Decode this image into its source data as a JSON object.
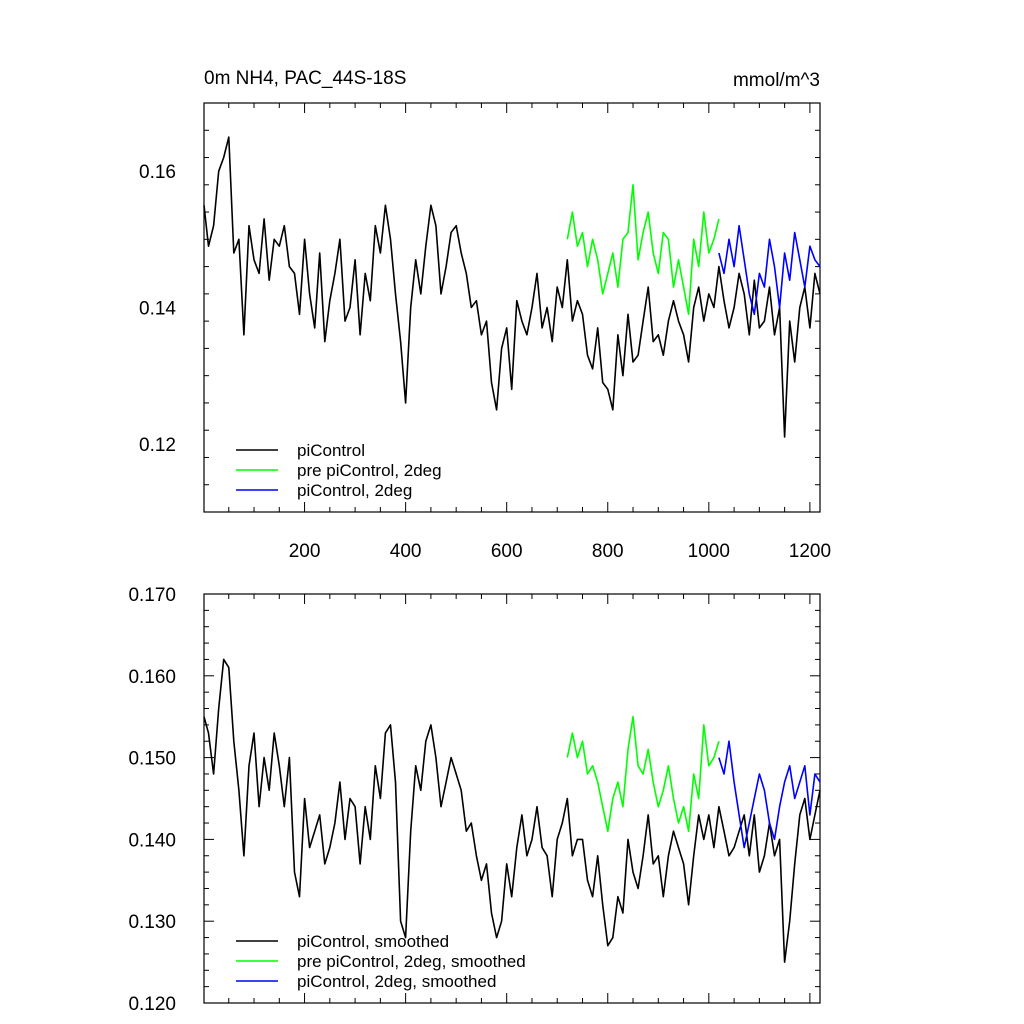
{
  "chart_data": [
    {
      "type": "line",
      "title": "0m NH4, PAC_44S-18S",
      "units": "mmol/m^3",
      "xlim": [
        1,
        1220
      ],
      "ylim": [
        0.11,
        0.17
      ],
      "xticks": [
        200,
        400,
        600,
        800,
        1000,
        1200
      ],
      "xtick_labels": [
        "200",
        "400",
        "600",
        "800",
        "1000",
        "1200"
      ],
      "yticks": [
        0.12,
        0.14,
        0.16
      ],
      "ytick_labels": [
        "0.12",
        "0.14",
        "0.16"
      ],
      "legend_position": "bottom-left",
      "series": [
        {
          "name": "piControl",
          "color": "#000000",
          "x": [
            1,
            10,
            20,
            30,
            40,
            50,
            60,
            70,
            80,
            90,
            100,
            110,
            120,
            130,
            140,
            150,
            160,
            170,
            180,
            190,
            200,
            210,
            220,
            230,
            240,
            250,
            260,
            270,
            280,
            290,
            300,
            310,
            320,
            330,
            340,
            350,
            360,
            370,
            380,
            390,
            400,
            410,
            420,
            430,
            440,
            450,
            460,
            470,
            480,
            490,
            500,
            510,
            520,
            530,
            540,
            550,
            560,
            570,
            580,
            590,
            600,
            610,
            620,
            630,
            640,
            650,
            660,
            670,
            680,
            690,
            700,
            710,
            720,
            730,
            740,
            750,
            760,
            770,
            780,
            790,
            800,
            810,
            820,
            830,
            840,
            850,
            860,
            870,
            880,
            890,
            900,
            910,
            920,
            930,
            940,
            950,
            960,
            970,
            980,
            990,
            1000,
            1010,
            1020,
            1030,
            1040,
            1050,
            1060,
            1070,
            1080,
            1090,
            1100,
            1110,
            1120,
            1130,
            1140,
            1150,
            1160,
            1170,
            1180,
            1190,
            1200,
            1210,
            1220
          ],
          "values": [
            0.155,
            0.149,
            0.152,
            0.16,
            0.162,
            0.165,
            0.148,
            0.15,
            0.136,
            0.152,
            0.147,
            0.145,
            0.153,
            0.144,
            0.15,
            0.149,
            0.152,
            0.146,
            0.145,
            0.139,
            0.15,
            0.142,
            0.137,
            0.148,
            0.135,
            0.141,
            0.145,
            0.15,
            0.138,
            0.14,
            0.147,
            0.136,
            0.145,
            0.141,
            0.152,
            0.148,
            0.155,
            0.15,
            0.142,
            0.135,
            0.126,
            0.14,
            0.147,
            0.142,
            0.149,
            0.155,
            0.152,
            0.142,
            0.146,
            0.151,
            0.152,
            0.148,
            0.145,
            0.14,
            0.141,
            0.136,
            0.138,
            0.129,
            0.125,
            0.134,
            0.137,
            0.128,
            0.141,
            0.138,
            0.136,
            0.14,
            0.145,
            0.137,
            0.14,
            0.135,
            0.143,
            0.14,
            0.147,
            0.138,
            0.141,
            0.139,
            0.133,
            0.131,
            0.137,
            0.129,
            0.128,
            0.125,
            0.136,
            0.13,
            0.139,
            0.132,
            0.133,
            0.138,
            0.143,
            0.135,
            0.136,
            0.133,
            0.138,
            0.141,
            0.138,
            0.136,
            0.132,
            0.14,
            0.143,
            0.138,
            0.142,
            0.14,
            0.146,
            0.141,
            0.137,
            0.14,
            0.145,
            0.142,
            0.136,
            0.144,
            0.137,
            0.138,
            0.143,
            0.136,
            0.14,
            0.121,
            0.138,
            0.132,
            0.14,
            0.143,
            0.137,
            0.145,
            0.142
          ]
        },
        {
          "name": "pre piControl, 2deg",
          "color": "#00ff00",
          "x": [
            720,
            730,
            740,
            750,
            760,
            770,
            780,
            790,
            800,
            810,
            820,
            830,
            840,
            850,
            860,
            870,
            880,
            890,
            900,
            910,
            920,
            930,
            940,
            950,
            960,
            970,
            980,
            990,
            1000,
            1010,
            1020
          ],
          "values": [
            0.15,
            0.154,
            0.149,
            0.151,
            0.146,
            0.15,
            0.147,
            0.142,
            0.145,
            0.148,
            0.143,
            0.15,
            0.151,
            0.158,
            0.147,
            0.151,
            0.154,
            0.148,
            0.145,
            0.151,
            0.15,
            0.143,
            0.147,
            0.143,
            0.139,
            0.15,
            0.146,
            0.154,
            0.148,
            0.15,
            0.153
          ]
        },
        {
          "name": "piControl, 2deg",
          "color": "#0000ff",
          "x": [
            1020,
            1030,
            1040,
            1050,
            1060,
            1070,
            1080,
            1090,
            1100,
            1110,
            1120,
            1130,
            1140,
            1150,
            1160,
            1170,
            1180,
            1190,
            1200,
            1210,
            1220
          ],
          "values": [
            0.148,
            0.145,
            0.15,
            0.146,
            0.152,
            0.147,
            0.142,
            0.139,
            0.145,
            0.143,
            0.15,
            0.146,
            0.14,
            0.148,
            0.144,
            0.151,
            0.147,
            0.143,
            0.149,
            0.147,
            0.146
          ]
        }
      ]
    },
    {
      "type": "line",
      "title": "",
      "xlim": [
        1,
        1220
      ],
      "ylim": [
        0.12,
        0.17
      ],
      "yticks": [
        0.12,
        0.13,
        0.14,
        0.15,
        0.16,
        0.17
      ],
      "ytick_labels": [
        "0.120",
        "0.130",
        "0.140",
        "0.150",
        "0.160",
        "0.170"
      ],
      "legend_position": "bottom-left",
      "series": [
        {
          "name": "piControl, smoothed",
          "color": "#000000",
          "x": [
            1,
            10,
            20,
            30,
            40,
            50,
            60,
            70,
            80,
            90,
            100,
            110,
            120,
            130,
            140,
            150,
            160,
            170,
            180,
            190,
            200,
            210,
            220,
            230,
            240,
            250,
            260,
            270,
            280,
            290,
            300,
            310,
            320,
            330,
            340,
            350,
            360,
            370,
            380,
            390,
            400,
            410,
            420,
            430,
            440,
            450,
            460,
            470,
            480,
            490,
            500,
            510,
            520,
            530,
            540,
            550,
            560,
            570,
            580,
            590,
            600,
            610,
            620,
            630,
            640,
            650,
            660,
            670,
            680,
            690,
            700,
            710,
            720,
            730,
            740,
            750,
            760,
            770,
            780,
            790,
            800,
            810,
            820,
            830,
            840,
            850,
            860,
            870,
            880,
            890,
            900,
            910,
            920,
            930,
            940,
            950,
            960,
            970,
            980,
            990,
            1000,
            1010,
            1020,
            1030,
            1040,
            1050,
            1060,
            1070,
            1080,
            1090,
            1100,
            1110,
            1120,
            1130,
            1140,
            1150,
            1160,
            1170,
            1180,
            1190,
            1200,
            1210,
            1220
          ],
          "values": [
            0.155,
            0.153,
            0.148,
            0.156,
            0.162,
            0.161,
            0.152,
            0.146,
            0.138,
            0.149,
            0.153,
            0.144,
            0.15,
            0.146,
            0.153,
            0.149,
            0.144,
            0.15,
            0.136,
            0.133,
            0.145,
            0.139,
            0.141,
            0.143,
            0.137,
            0.139,
            0.142,
            0.147,
            0.14,
            0.145,
            0.144,
            0.137,
            0.144,
            0.14,
            0.149,
            0.145,
            0.153,
            0.154,
            0.147,
            0.13,
            0.128,
            0.141,
            0.149,
            0.146,
            0.152,
            0.154,
            0.15,
            0.144,
            0.147,
            0.15,
            0.148,
            0.146,
            0.141,
            0.142,
            0.138,
            0.135,
            0.137,
            0.131,
            0.128,
            0.13,
            0.137,
            0.133,
            0.139,
            0.143,
            0.138,
            0.14,
            0.144,
            0.139,
            0.138,
            0.133,
            0.14,
            0.142,
            0.145,
            0.138,
            0.14,
            0.14,
            0.135,
            0.133,
            0.138,
            0.132,
            0.127,
            0.128,
            0.133,
            0.131,
            0.14,
            0.136,
            0.134,
            0.138,
            0.143,
            0.137,
            0.138,
            0.133,
            0.138,
            0.141,
            0.139,
            0.137,
            0.132,
            0.138,
            0.143,
            0.14,
            0.143,
            0.139,
            0.144,
            0.141,
            0.138,
            0.139,
            0.141,
            0.143,
            0.138,
            0.143,
            0.136,
            0.138,
            0.142,
            0.138,
            0.14,
            0.125,
            0.13,
            0.137,
            0.143,
            0.145,
            0.14,
            0.143,
            0.146
          ]
        },
        {
          "name": "pre piControl, 2deg, smoothed",
          "color": "#00ff00",
          "x": [
            720,
            730,
            740,
            750,
            760,
            770,
            780,
            790,
            800,
            810,
            820,
            830,
            840,
            850,
            860,
            870,
            880,
            890,
            900,
            910,
            920,
            930,
            940,
            950,
            960,
            970,
            980,
            990,
            1000,
            1010,
            1020
          ],
          "values": [
            0.15,
            0.153,
            0.15,
            0.152,
            0.148,
            0.149,
            0.147,
            0.144,
            0.141,
            0.145,
            0.147,
            0.144,
            0.151,
            0.155,
            0.149,
            0.148,
            0.151,
            0.147,
            0.144,
            0.146,
            0.149,
            0.145,
            0.142,
            0.144,
            0.141,
            0.148,
            0.145,
            0.154,
            0.149,
            0.15,
            0.152
          ]
        },
        {
          "name": "piControl, 2deg, smoothed",
          "color": "#0000ff",
          "x": [
            1020,
            1030,
            1040,
            1050,
            1060,
            1070,
            1080,
            1090,
            1100,
            1110,
            1120,
            1130,
            1140,
            1150,
            1160,
            1170,
            1180,
            1190,
            1200,
            1210,
            1220
          ],
          "values": [
            0.15,
            0.148,
            0.152,
            0.147,
            0.143,
            0.139,
            0.142,
            0.145,
            0.148,
            0.146,
            0.142,
            0.14,
            0.144,
            0.147,
            0.149,
            0.145,
            0.147,
            0.149,
            0.143,
            0.148,
            0.147
          ]
        }
      ]
    }
  ]
}
